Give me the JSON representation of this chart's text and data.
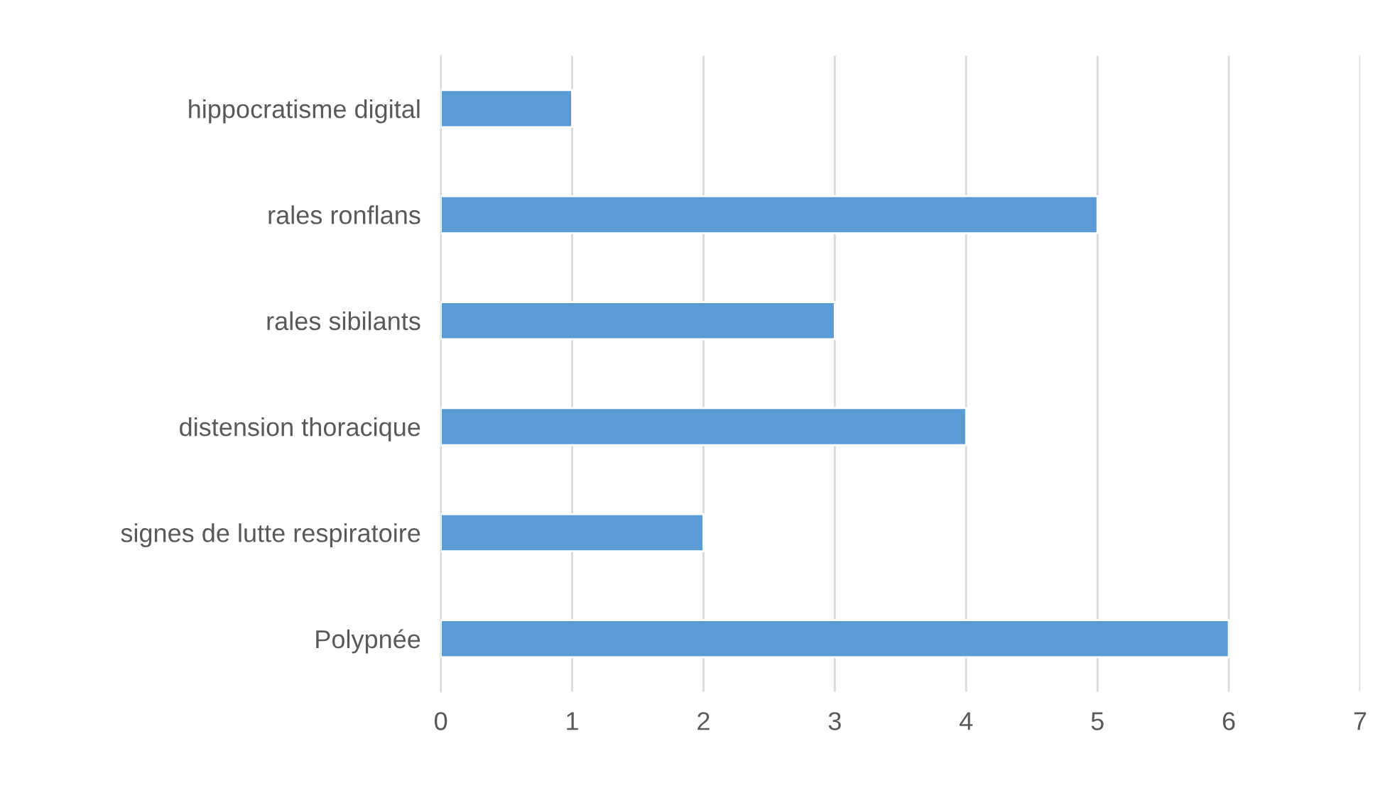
{
  "chart_data": {
    "type": "bar",
    "orientation": "horizontal",
    "categories": [
      "hippocratisme digital",
      "rales ronflans",
      "rales sibilants",
      "distension thoracique",
      "signes de lutte respiratoire",
      "Polypnée"
    ],
    "values": [
      1,
      5,
      3,
      4,
      2,
      6
    ],
    "color": "#5b9bd5",
    "xlim": [
      0,
      7
    ],
    "xticks": [
      0,
      1,
      2,
      3,
      4,
      5,
      6,
      7
    ],
    "grid": "x"
  }
}
